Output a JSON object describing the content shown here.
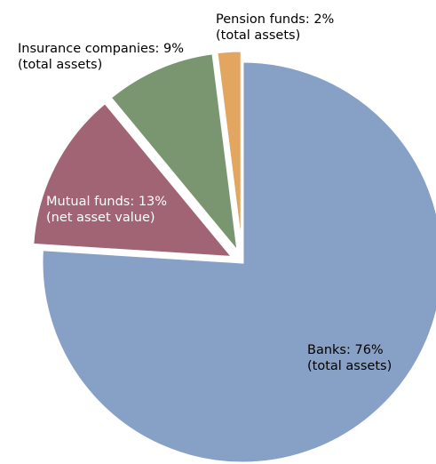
{
  "chart_data": {
    "type": "pie",
    "title": "",
    "slices": [
      {
        "name": "Banks",
        "value": 76,
        "label_line1": "Banks: 76%",
        "label_line2": "(total assets)",
        "color": "#87a1c6",
        "label_color": "#000000"
      },
      {
        "name": "Mutual funds",
        "value": 13,
        "label_line1": "Mutual funds: 13%",
        "label_line2": "(net asset value)",
        "color": "#a06474",
        "label_color": "#ffffff"
      },
      {
        "name": "Insurance companies",
        "value": 9,
        "label_line1": "Insurance companies: 9%",
        "label_line2": "(total assets)",
        "color": "#7a9670",
        "label_color": "#000000"
      },
      {
        "name": "Pension funds",
        "value": 2,
        "label_line1": "Pension funds: 2%",
        "label_line2": "(total assets)",
        "color": "#e3a660",
        "label_color": "#000000"
      }
    ],
    "start_slice": "Banks",
    "direction": "clockwise",
    "exploded_slices": [
      "Mutual funds",
      "Insurance companies",
      "Pension funds"
    ],
    "legend": "none"
  }
}
